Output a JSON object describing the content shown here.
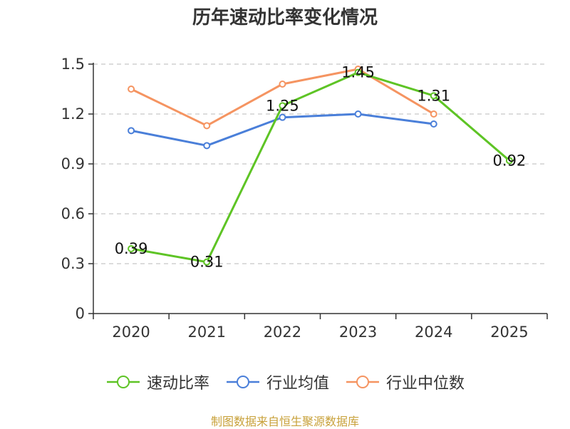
{
  "chart_data": {
    "type": "line",
    "title": "历年速动比率变化情况",
    "categories": [
      "2020",
      "2021",
      "2022",
      "2023",
      "2024",
      "2025"
    ],
    "y_ticks": [
      "0",
      "0.3",
      "0.6",
      "0.9",
      "1.2",
      "1.5"
    ],
    "ylim": [
      0,
      1.5
    ],
    "grid": true,
    "legend_position": "bottom",
    "series": [
      {
        "name": "速动比率",
        "color": "#5ec425",
        "values": [
          0.39,
          0.31,
          1.25,
          1.45,
          1.31,
          0.92
        ],
        "labels": [
          "0.39",
          "0.31",
          "1.25",
          "1.45",
          "1.31",
          "0.92"
        ]
      },
      {
        "name": "行业均值",
        "color": "#4a7fd9",
        "values": [
          1.1,
          1.01,
          1.18,
          1.2,
          1.14,
          null
        ]
      },
      {
        "name": "行业中位数",
        "color": "#f59461",
        "values": [
          1.35,
          1.13,
          1.38,
          1.47,
          1.2,
          null
        ]
      }
    ],
    "source": "制图数据来自恒生聚源数据库"
  }
}
